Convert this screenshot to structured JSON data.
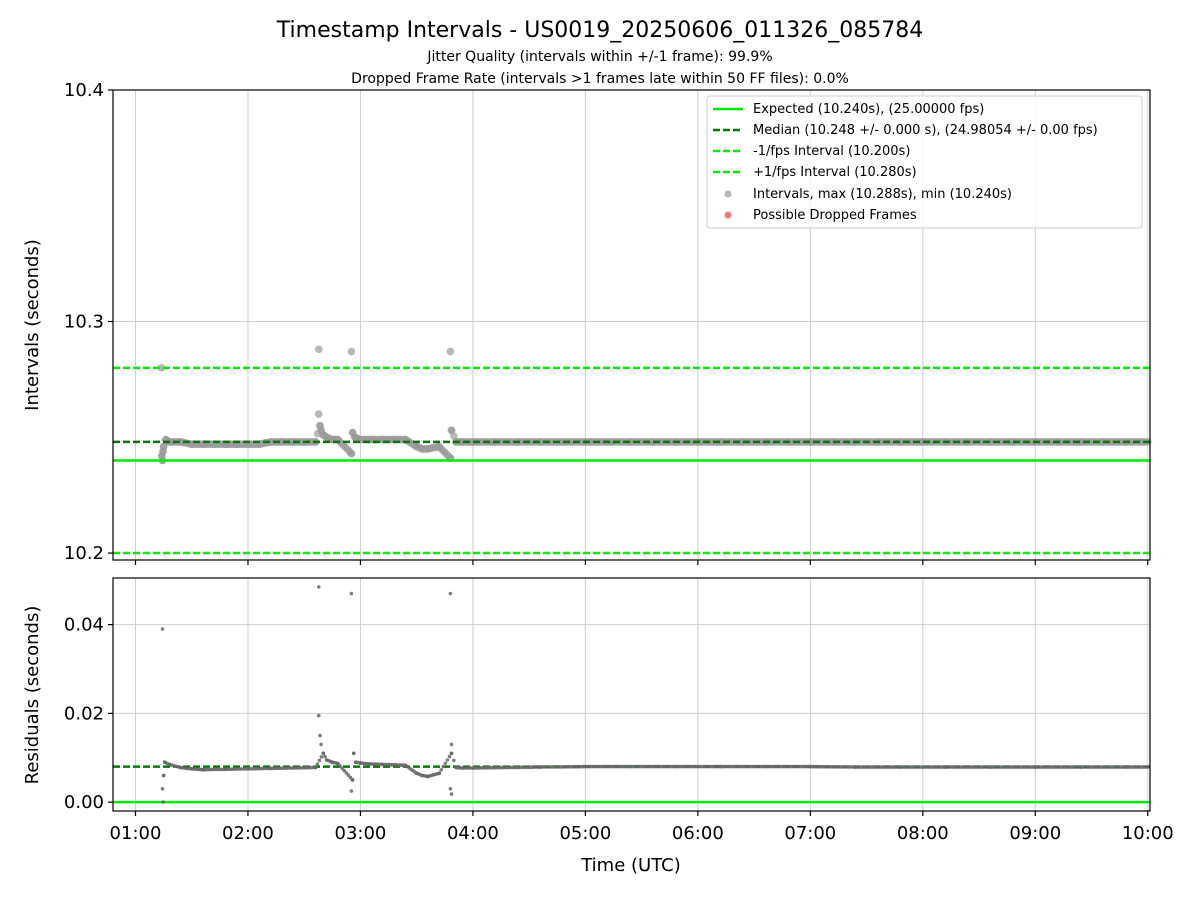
{
  "chart_data": [
    {
      "type": "scatter",
      "title": "Timestamp Intervals - US0019_20250606_011326_085784",
      "subtitle_lines": [
        "Jitter Quality (intervals within +/-1 frame): 99.9%",
        "Dropped Frame Rate (intervals >1 frames late within 50 FF files): 0.0%"
      ],
      "xlabel": "",
      "ylabel": "Intervals (seconds)",
      "x_unit": "hours UTC",
      "xlim": [
        0.8,
        10.02
      ],
      "ylim": [
        10.197,
        10.4
      ],
      "yticks": [
        10.2,
        10.3,
        10.4
      ],
      "ytick_labels": [
        "10.2",
        "10.3",
        "10.4"
      ],
      "grid": true,
      "legend_position": "top-right",
      "reference_lines": [
        {
          "name": "Expected (10.240s), (25.00000 fps)",
          "y": 10.24,
          "style": "solid",
          "color": "#00ee00"
        },
        {
          "name": "Median (10.248 +/- 0.000 s), (24.98054 +/- 0.00 fps)",
          "y": 10.248,
          "style": "dashed",
          "color": "#007a00"
        },
        {
          "name": "-1/fps Interval (10.200s)",
          "y": 10.2,
          "style": "dashed",
          "color": "#00ee00"
        },
        {
          "name": "+1/fps Interval (10.280s)",
          "y": 10.28,
          "style": "dashed",
          "color": "#00ee00"
        }
      ],
      "series": [
        {
          "name": "Intervals, max (10.288s), min (10.240s)",
          "color": "#9a9a9a",
          "points": [
            [
              1.23,
              10.28
            ],
            [
              1.24,
              10.24
            ],
            [
              1.235,
              10.242
            ],
            [
              1.245,
              10.244
            ],
            [
              1.25,
              10.246
            ],
            [
              1.27,
              10.249
            ],
            [
              1.3,
              10.248
            ],
            [
              1.4,
              10.248
            ],
            [
              1.5,
              10.247
            ],
            [
              1.6,
              10.247
            ],
            [
              1.7,
              10.247
            ],
            [
              1.8,
              10.247
            ],
            [
              1.9,
              10.247
            ],
            [
              2.0,
              10.247
            ],
            [
              2.1,
              10.247
            ],
            [
              2.2,
              10.248
            ],
            [
              2.3,
              10.248
            ],
            [
              2.4,
              10.248
            ],
            [
              2.5,
              10.248
            ],
            [
              2.6,
              10.248
            ],
            [
              2.63,
              10.288
            ],
            [
              2.63,
              10.26
            ],
            [
              2.64,
              10.255
            ],
            [
              2.65,
              10.253
            ],
            [
              2.67,
              10.251
            ],
            [
              2.7,
              10.25
            ],
            [
              2.75,
              10.249
            ],
            [
              2.8,
              10.249
            ],
            [
              2.92,
              10.287
            ],
            [
              2.92,
              10.243
            ],
            [
              2.93,
              10.252
            ],
            [
              2.95,
              10.25
            ],
            [
              3.0,
              10.249
            ],
            [
              3.1,
              10.249
            ],
            [
              3.2,
              10.249
            ],
            [
              3.3,
              10.249
            ],
            [
              3.4,
              10.249
            ],
            [
              3.5,
              10.246
            ],
            [
              3.55,
              10.245
            ],
            [
              3.6,
              10.245
            ],
            [
              3.7,
              10.246
            ],
            [
              3.8,
              10.287
            ],
            [
              3.8,
              10.241
            ],
            [
              3.81,
              10.253
            ],
            [
              3.85,
              10.248
            ],
            [
              3.9,
              10.248
            ],
            [
              4.0,
              10.248
            ],
            [
              4.2,
              10.248
            ],
            [
              4.4,
              10.248
            ],
            [
              4.6,
              10.248
            ],
            [
              4.8,
              10.248
            ],
            [
              5.0,
              10.248
            ],
            [
              5.2,
              10.248
            ],
            [
              5.4,
              10.248
            ],
            [
              5.6,
              10.248
            ],
            [
              5.8,
              10.248
            ],
            [
              6.0,
              10.248
            ],
            [
              6.2,
              10.248
            ],
            [
              6.4,
              10.248
            ],
            [
              6.6,
              10.248
            ],
            [
              6.8,
              10.248
            ],
            [
              7.0,
              10.248
            ],
            [
              7.2,
              10.248
            ],
            [
              7.4,
              10.248
            ],
            [
              7.6,
              10.248
            ],
            [
              7.8,
              10.248
            ],
            [
              8.0,
              10.248
            ],
            [
              8.2,
              10.248
            ],
            [
              8.4,
              10.248
            ],
            [
              8.6,
              10.248
            ],
            [
              8.8,
              10.248
            ],
            [
              9.0,
              10.248
            ],
            [
              9.2,
              10.248
            ],
            [
              9.4,
              10.248
            ],
            [
              9.6,
              10.248
            ],
            [
              9.8,
              10.248
            ],
            [
              10.0,
              10.248
            ]
          ]
        },
        {
          "name": "Possible Dropped Frames",
          "color": "#f07070",
          "points": []
        }
      ]
    },
    {
      "type": "scatter",
      "title": "",
      "xlabel": "Time (UTC)",
      "ylabel": "Residuals (seconds)",
      "x_unit": "hours UTC",
      "xlim": [
        0.8,
        10.02
      ],
      "ylim": [
        -0.002,
        0.0505
      ],
      "yticks": [
        0.0,
        0.02,
        0.04
      ],
      "ytick_labels": [
        "0.00",
        "0.02",
        "0.04"
      ],
      "xticks": [
        1,
        2,
        3,
        4,
        5,
        6,
        7,
        8,
        9,
        10
      ],
      "xtick_labels": [
        "01:00",
        "02:00",
        "03:00",
        "04:00",
        "05:00",
        "06:00",
        "07:00",
        "08:00",
        "09:00",
        "10:00"
      ],
      "grid": true,
      "reference_lines": [
        {
          "y": 0.0,
          "style": "solid",
          "color": "#00ee00"
        },
        {
          "y": 0.008,
          "style": "dashed",
          "color": "#007a00"
        }
      ],
      "series": [
        {
          "color": "#666666",
          "points": [
            [
              1.24,
              0.039
            ],
            [
              1.24,
              0.003
            ],
            [
              1.245,
              0.0
            ],
            [
              1.25,
              0.006
            ],
            [
              1.26,
              0.009
            ],
            [
              1.3,
              0.0085
            ],
            [
              1.4,
              0.0078
            ],
            [
              1.5,
              0.0075
            ],
            [
              1.6,
              0.0073
            ],
            [
              1.8,
              0.0074
            ],
            [
              2.0,
              0.0075
            ],
            [
              2.2,
              0.0076
            ],
            [
              2.4,
              0.0077
            ],
            [
              2.6,
              0.0078
            ],
            [
              2.63,
              0.0485
            ],
            [
              2.63,
              0.0195
            ],
            [
              2.64,
              0.015
            ],
            [
              2.65,
              0.013
            ],
            [
              2.67,
              0.011
            ],
            [
              2.7,
              0.0095
            ],
            [
              2.75,
              0.009
            ],
            [
              2.8,
              0.0087
            ],
            [
              2.92,
              0.047
            ],
            [
              2.92,
              0.0025
            ],
            [
              2.93,
              0.005
            ],
            [
              2.94,
              0.011
            ],
            [
              2.96,
              0.009
            ],
            [
              3.0,
              0.0088
            ],
            [
              3.1,
              0.0086
            ],
            [
              3.2,
              0.0085
            ],
            [
              3.3,
              0.0084
            ],
            [
              3.4,
              0.0083
            ],
            [
              3.5,
              0.0065
            ],
            [
              3.55,
              0.006
            ],
            [
              3.6,
              0.0058
            ],
            [
              3.7,
              0.0065
            ],
            [
              3.8,
              0.047
            ],
            [
              3.81,
              0.013
            ],
            [
              3.81,
              0.011
            ],
            [
              3.8,
              0.003
            ],
            [
              3.81,
              0.0018
            ],
            [
              3.85,
              0.0078
            ],
            [
              3.9,
              0.0077
            ],
            [
              4.0,
              0.0077
            ],
            [
              4.3,
              0.0078
            ],
            [
              4.6,
              0.0079
            ],
            [
              5.0,
              0.008
            ],
            [
              5.4,
              0.008
            ],
            [
              5.8,
              0.008
            ],
            [
              6.2,
              0.008
            ],
            [
              6.6,
              0.008
            ],
            [
              7.0,
              0.008
            ],
            [
              7.4,
              0.0079
            ],
            [
              7.8,
              0.0079
            ],
            [
              8.2,
              0.0079
            ],
            [
              8.6,
              0.0079
            ],
            [
              9.0,
              0.0079
            ],
            [
              9.4,
              0.0079
            ],
            [
              9.8,
              0.0079
            ],
            [
              10.0,
              0.0079
            ]
          ]
        }
      ]
    }
  ]
}
